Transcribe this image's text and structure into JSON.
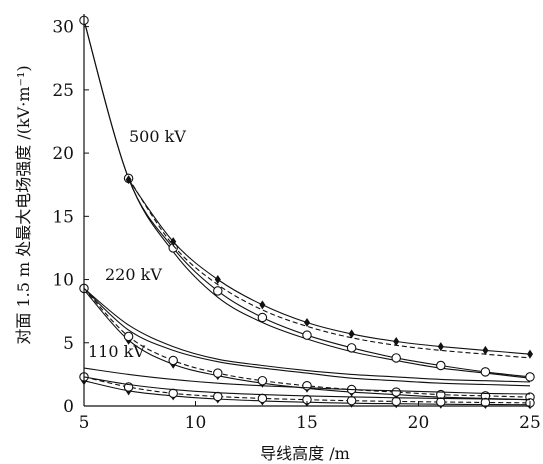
{
  "chart_data": {
    "type": "line",
    "xlabel": "导线高度 /m",
    "ylabel": "对面 1.5 m 处最大电场强度 /(kV·m⁻¹)",
    "xlim": [
      5,
      25
    ],
    "ylim": [
      0,
      31
    ],
    "xticks": [
      5,
      10,
      15,
      20,
      25
    ],
    "yticks": [
      0,
      5,
      10,
      15,
      20,
      25,
      30
    ],
    "grid": false,
    "groups": [
      {
        "label": "500 kV",
        "series": [
          {
            "style": "solid",
            "x": [
              5,
              7,
              9,
              11,
              13,
              15,
              17,
              19,
              21,
              23,
              25
            ],
            "y": [
              30.5,
              18.0,
              12.2,
              8.6,
              6.6,
              5.3,
              4.3,
              3.6,
              3.0,
              2.6,
              2.2
            ]
          },
          {
            "style": "solid-circle",
            "x": [
              5,
              7,
              9,
              11,
              13,
              15,
              17,
              19,
              21,
              23,
              25
            ],
            "y": [
              30.5,
              18.0,
              12.5,
              9.1,
              7.0,
              5.6,
              4.6,
              3.8,
              3.2,
              2.7,
              2.3
            ]
          },
          {
            "style": "dashed",
            "x": [
              7,
              9,
              11,
              13,
              15,
              17,
              19,
              21,
              23,
              25
            ],
            "y": [
              18.0,
              12.7,
              9.6,
              7.6,
              6.3,
              5.4,
              4.8,
              4.4,
              4.1,
              3.8
            ]
          },
          {
            "style": "solid-diamond",
            "x": [
              7,
              9,
              11,
              13,
              15,
              17,
              19,
              21,
              23,
              25
            ],
            "y": [
              17.9,
              13.0,
              10.0,
              8.0,
              6.6,
              5.7,
              5.1,
              4.7,
              4.4,
              4.1
            ]
          }
        ]
      },
      {
        "label": "220 kV",
        "series": [
          {
            "style": "solid-diamond",
            "x": [
              5,
              7,
              9,
              11,
              13,
              15,
              17,
              19,
              21,
              23,
              25
            ],
            "y": [
              9.2,
              5.2,
              3.3,
              2.4,
              1.8,
              1.4,
              1.1,
              0.9,
              0.7,
              0.6,
              0.5
            ]
          },
          {
            "style": "dashed-circle",
            "x": [
              5,
              7,
              9,
              11,
              13,
              15,
              17,
              19,
              21,
              23,
              25
            ],
            "y": [
              9.3,
              5.5,
              3.6,
              2.6,
              2.0,
              1.6,
              1.3,
              1.1,
              0.9,
              0.8,
              0.7
            ]
          },
          {
            "style": "solid",
            "x": [
              5,
              7,
              9,
              11,
              13,
              15,
              17,
              19,
              21,
              23,
              25
            ],
            "y": [
              9.3,
              6.0,
              4.4,
              3.5,
              3.0,
              2.6,
              2.2,
              2.0,
              1.8,
              1.7,
              1.6
            ]
          },
          {
            "style": "solid",
            "x": [
              5,
              7,
              9,
              11,
              13,
              15,
              17,
              19,
              21,
              23,
              25
            ],
            "y": [
              9.3,
              6.4,
              4.7,
              3.7,
              3.2,
              2.8,
              2.5,
              2.3,
              2.1,
              2.0,
              1.9
            ]
          }
        ]
      },
      {
        "label": "110 kV",
        "series": [
          {
            "style": "solid-diamond",
            "x": [
              5,
              7,
              9,
              11,
              13,
              15,
              17,
              19,
              21,
              23,
              25
            ],
            "y": [
              2.0,
              1.2,
              0.8,
              0.55,
              0.4,
              0.3,
              0.22,
              0.18,
              0.14,
              0.12,
              0.1
            ]
          },
          {
            "style": "dashed-circle",
            "x": [
              5,
              7,
              9,
              11,
              13,
              15,
              17,
              19,
              21,
              23,
              25
            ],
            "y": [
              2.3,
              1.5,
              1.0,
              0.75,
              0.6,
              0.5,
              0.42,
              0.36,
              0.32,
              0.28,
              0.25
            ]
          },
          {
            "style": "solid",
            "x": [
              5,
              7,
              9,
              11,
              13,
              15,
              17,
              19,
              21,
              23,
              25
            ],
            "y": [
              2.3,
              1.7,
              1.3,
              1.05,
              0.9,
              0.8,
              0.72,
              0.65,
              0.6,
              0.55,
              0.5
            ]
          },
          {
            "style": "solid",
            "x": [
              5,
              7,
              9,
              11,
              13,
              15,
              17,
              19,
              21,
              23,
              25
            ],
            "y": [
              3.0,
              2.5,
              2.1,
              1.8,
              1.6,
              1.45,
              1.3,
              1.2,
              1.1,
              1.0,
              0.95
            ]
          }
        ]
      }
    ]
  }
}
